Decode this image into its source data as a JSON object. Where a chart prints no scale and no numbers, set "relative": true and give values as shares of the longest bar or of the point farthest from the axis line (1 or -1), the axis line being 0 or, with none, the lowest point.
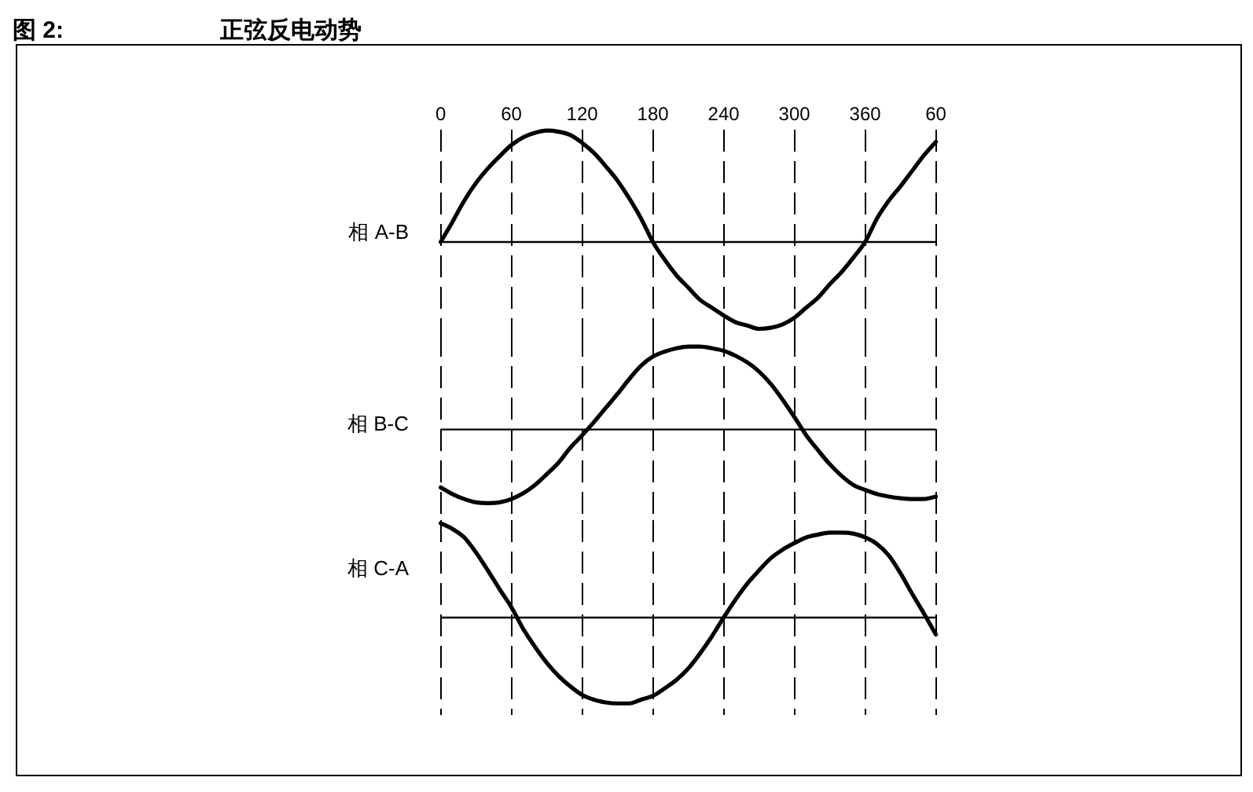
{
  "chart_data": [
    {
      "type": "line",
      "title": "正弦反电动势",
      "annotations": [
        "图 2:"
      ],
      "ylabel": "相 A-B",
      "relative": true,
      "color": "#000000",
      "grid": "x",
      "tick_labels": "x",
      "categories": [
        "0",
        null,
        null,
        null,
        null,
        null,
        "60",
        null,
        null,
        null,
        null,
        null,
        "120",
        null,
        null,
        null,
        null,
        null,
        "180",
        null,
        null,
        null,
        null,
        null,
        "240",
        null,
        null,
        null,
        null,
        null,
        "300",
        null,
        null,
        null,
        null,
        null,
        "360",
        null,
        null,
        null,
        null,
        null,
        "60"
      ],
      "values": [
        0,
        0.18,
        0.37,
        0.53,
        0.66,
        0.77,
        0.87,
        0.94,
        0.98,
        1,
        0.99,
        0.96,
        0.89,
        0.8,
        0.68,
        0.55,
        0.39,
        0.21,
        0,
        -0.16,
        -0.3,
        -0.41,
        -0.52,
        -0.59,
        -0.66,
        -0.72,
        -0.75,
        -0.78,
        -0.77,
        -0.74,
        -0.68,
        -0.59,
        -0.5,
        -0.38,
        -0.27,
        -0.14,
        0,
        0.21,
        0.37,
        0.5,
        0.64,
        0.78,
        0.9
      ]
    },
    {
      "type": "line",
      "ylabel": "相 B-C",
      "relative": true,
      "color": "#000000",
      "grid": "x",
      "tick_labels": false,
      "categories": [
        "0",
        null,
        null,
        null,
        null,
        null,
        "60",
        null,
        null,
        null,
        null,
        null,
        "120",
        null,
        null,
        null,
        null,
        null,
        "180",
        null,
        null,
        null,
        null,
        null,
        "240",
        null,
        null,
        null,
        null,
        null,
        "300",
        null,
        null,
        null,
        null,
        null,
        "360",
        null,
        null,
        null,
        null,
        null,
        "60"
      ],
      "values": [
        -0.7,
        -0.78,
        -0.84,
        -0.88,
        -0.89,
        -0.88,
        -0.84,
        -0.77,
        -0.67,
        -0.54,
        -0.4,
        -0.22,
        -0.07,
        0.09,
        0.26,
        0.43,
        0.61,
        0.77,
        0.88,
        0.94,
        0.98,
        1,
        1,
        0.98,
        0.95,
        0.89,
        0.81,
        0.7,
        0.55,
        0.36,
        0.15,
        -0.07,
        -0.25,
        -0.42,
        -0.56,
        -0.67,
        -0.73,
        -0.78,
        -0.81,
        -0.83,
        -0.84,
        -0.84,
        -0.81
      ]
    },
    {
      "type": "line",
      "ylabel": "相 C-A",
      "relative": true,
      "color": "#000000",
      "grid": "x",
      "tick_labels": false,
      "categories": [
        "0",
        null,
        null,
        null,
        null,
        null,
        "60",
        null,
        null,
        null,
        null,
        null,
        "120",
        null,
        null,
        null,
        null,
        null,
        "180",
        null,
        null,
        null,
        null,
        null,
        "240",
        null,
        null,
        null,
        null,
        null,
        "300",
        null,
        null,
        null,
        null,
        null,
        "360",
        null,
        null,
        null,
        null,
        null,
        "60"
      ],
      "values": [
        1,
        0.94,
        0.85,
        0.69,
        0.5,
        0.3,
        0.11,
        -0.12,
        -0.31,
        -0.48,
        -0.62,
        -0.73,
        -0.82,
        -0.87,
        -0.9,
        -0.91,
        -0.91,
        -0.87,
        -0.83,
        -0.75,
        -0.66,
        -0.54,
        -0.38,
        -0.2,
        0,
        0.19,
        0.36,
        0.5,
        0.63,
        0.72,
        0.79,
        0.85,
        0.88,
        0.9,
        0.9,
        0.89,
        0.85,
        0.78,
        0.66,
        0.47,
        0.25,
        0.04,
        -0.18
      ]
    }
  ]
}
